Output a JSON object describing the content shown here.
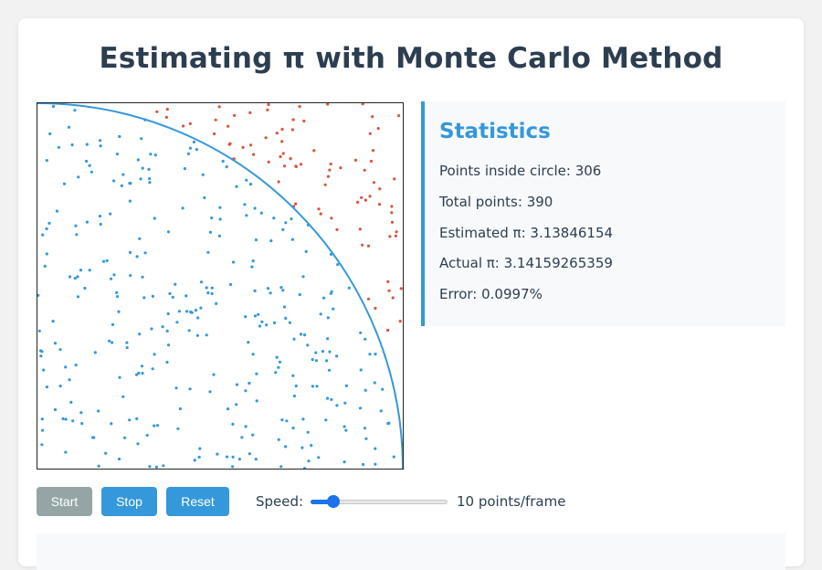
{
  "title": "Estimating π with Monte Carlo Method",
  "colors": {
    "accent": "#3498db",
    "inside_point": "#3498db",
    "outside_point": "#d9533f",
    "disabled_button": "#95a5a6",
    "heading": "#2c3e50"
  },
  "stats": {
    "title": "Statistics",
    "inside": "Points inside circle: 306",
    "total": "Total points: 390",
    "estimated": "Estimated π: 3.13846154",
    "actual": "Actual π: 3.14159265359",
    "error": "Error: 0.0997%"
  },
  "controls": {
    "start_label": "Start",
    "stop_label": "Stop",
    "reset_label": "Reset",
    "speed_label": "Speed:",
    "speed_value_text": "10 points/frame",
    "speed_fraction": 0.1
  },
  "simulation": {
    "inside_count": 306,
    "total_count": 390
  }
}
